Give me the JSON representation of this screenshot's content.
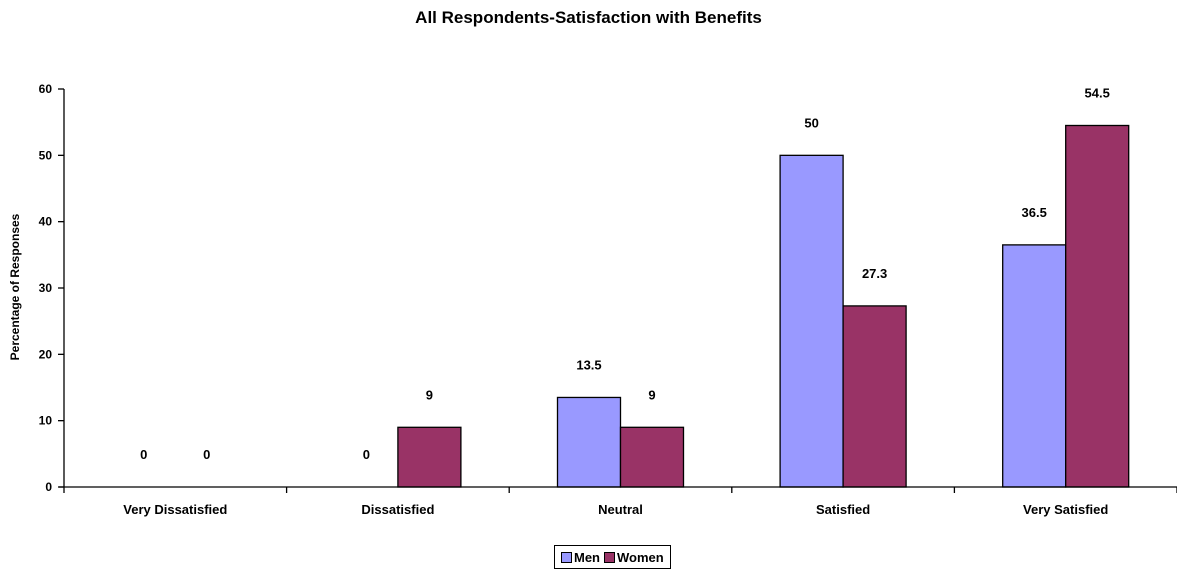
{
  "chart_data": {
    "type": "bar",
    "title": "All Respondents-Satisfaction with Benefits",
    "xlabel": "",
    "ylabel": "Percentage of Responses",
    "categories": [
      "Very Dissatisfied",
      "Dissatisfied",
      "Neutral",
      "Satisfied",
      "Very Satisfied"
    ],
    "series": [
      {
        "name": "Men",
        "color": "#9999ff",
        "values": [
          0,
          0,
          13.5,
          50,
          36.5
        ]
      },
      {
        "name": "Women",
        "color": "#993366",
        "values": [
          0,
          9,
          9,
          27.3,
          54.5
        ]
      }
    ],
    "ylim": [
      0,
      60
    ],
    "yticks": [
      0,
      10,
      20,
      30,
      40,
      50,
      60
    ],
    "grid": false,
    "legend_position": "bottom"
  }
}
